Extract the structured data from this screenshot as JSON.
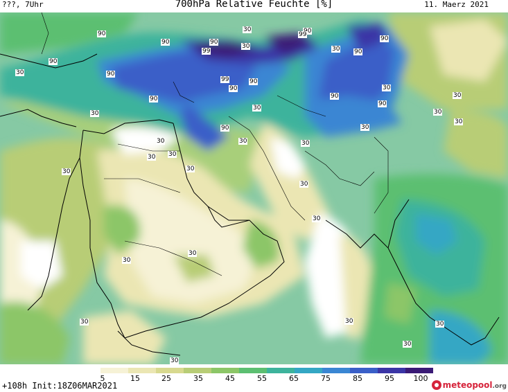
{
  "header": {
    "left": "???, 7Uhr",
    "title": "700hPa Relative Feuchte [%]",
    "right": "11. Maerz 2021"
  },
  "map": {
    "region": "Middle East / Arabian Peninsula / Indian subcontinent",
    "contour_labels": [
      "90",
      "90",
      "90",
      "90",
      "99",
      "99",
      "90",
      "90",
      "90",
      "90",
      "90",
      "99",
      "90",
      "90",
      "90",
      "90",
      "90",
      "30",
      "30",
      "30",
      "30",
      "30",
      "30",
      "30",
      "30",
      "30",
      "30",
      "30",
      "30",
      "30",
      "30",
      "30",
      "30",
      "30",
      "30",
      "30",
      "30",
      "30",
      "30",
      "30",
      "30",
      "30",
      "30",
      "30"
    ]
  },
  "colorbar": {
    "colors": [
      "#ffffff",
      "#f6f2d6",
      "#ebe6b3",
      "#d8d98f",
      "#b8cd76",
      "#8cc667",
      "#5cbf71",
      "#3db39c",
      "#34a7c4",
      "#3a86d3",
      "#3a5fc8",
      "#3b35a6",
      "#3a1a76"
    ],
    "labels": [
      "5",
      "15",
      "25",
      "35",
      "45",
      "55",
      "65",
      "75",
      "85",
      "95",
      "100"
    ]
  },
  "footer": {
    "run_info": "+108h  Init:18Z06MAR2021",
    "logo_text": "meteopool",
    "logo_suffix": ".org"
  }
}
